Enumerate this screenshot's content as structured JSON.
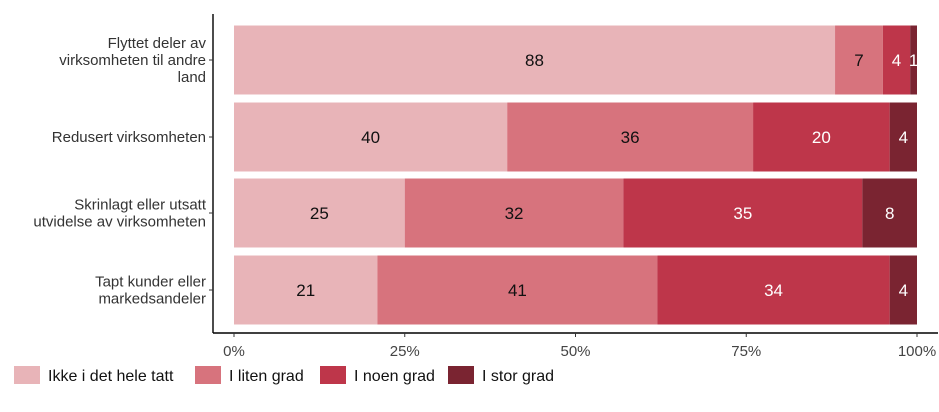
{
  "chart_data": {
    "type": "bar",
    "orientation": "horizontal",
    "stacked": true,
    "percent": true,
    "title": "",
    "xlabel": "",
    "ylabel": "",
    "xlim": [
      0,
      100
    ],
    "x_ticks": [
      "0%",
      "25%",
      "50%",
      "75%",
      "100%"
    ],
    "x_tick_values": [
      0,
      25,
      50,
      75,
      100
    ],
    "grid": false,
    "legend_position": "bottom",
    "categories": [
      [
        "Flyttet deler av",
        "virksomheten til andre",
        "land"
      ],
      [
        "Redusert virksomheten"
      ],
      [
        "Skrinlagt eller utsatt",
        "utvidelse av virksomheten"
      ],
      [
        "Tapt kunder eller",
        "markedsandeler"
      ]
    ],
    "series": [
      {
        "name": "Ikke i det hele tatt",
        "color": "#e8b4b8",
        "label_color": "#111111",
        "values": [
          88,
          40,
          25,
          21
        ]
      },
      {
        "name": "I liten grad",
        "color": "#d7737d",
        "label_color": "#111111",
        "values": [
          7,
          36,
          32,
          41
        ]
      },
      {
        "name": "I noen grad",
        "color": "#be364a",
        "label_color": "#ffffff",
        "values": [
          4,
          20,
          35,
          34
        ]
      },
      {
        "name": "I stor grad",
        "color": "#7a2431",
        "label_color": "#ffffff",
        "values": [
          1,
          4,
          8,
          4
        ]
      }
    ]
  }
}
